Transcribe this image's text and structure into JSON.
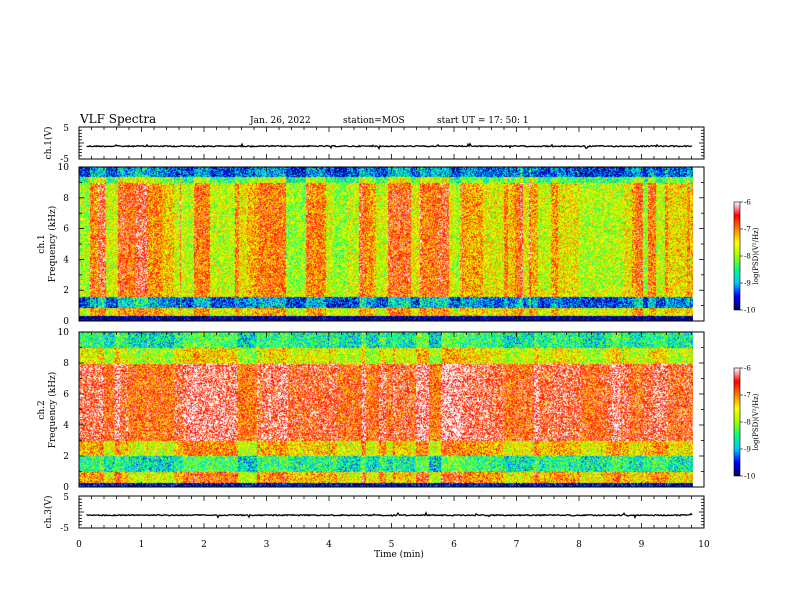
{
  "header": {
    "title": "VLF Spectra",
    "date": "Jan. 26, 2022",
    "station": "station=MOS",
    "start": "start  UT =   17: 50: 1"
  },
  "chart_data": [
    {
      "type": "line",
      "name": "ch1-waveform",
      "ylabel": "ch.1(V)",
      "ylim": [
        -5,
        5
      ],
      "yticks": [
        "5",
        "-5"
      ],
      "baseline": -1.0
    },
    {
      "type": "heatmap",
      "name": "ch1-spectrogram",
      "ylabel": "ch.1\nFrequency (kHz)",
      "ylim": [
        0,
        10
      ],
      "yticks": [
        "0",
        "2",
        "4",
        "6",
        "8",
        "10"
      ],
      "colorbar": {
        "label": "log(PSD)(V²/Hz)",
        "ticks": [
          "-6",
          "-7",
          "-8",
          "-9",
          "-10"
        ],
        "range": [
          -10,
          -6
        ]
      }
    },
    {
      "type": "heatmap",
      "name": "ch2-spectrogram",
      "ylabel": "ch.2\nFrequency (kHz)",
      "ylim": [
        0,
        10
      ],
      "yticks": [
        "0",
        "2",
        "4",
        "6",
        "8",
        "10"
      ],
      "colorbar": {
        "label": "log(PSD)(V²/Hz)",
        "ticks": [
          "-6",
          "-7",
          "-8",
          "-9",
          "-10"
        ],
        "range": [
          -10,
          -6
        ]
      }
    },
    {
      "type": "line",
      "name": "ch3-waveform",
      "ylabel": "ch.3(V)",
      "ylim": [
        -5,
        5
      ],
      "yticks": [
        "5",
        "-5"
      ],
      "baseline": -1.0
    }
  ],
  "xaxis": {
    "label": "Time  (min)",
    "ticks": [
      "0",
      "1",
      "2",
      "3",
      "4",
      "5",
      "6",
      "7",
      "8",
      "9",
      "10"
    ],
    "xlim": [
      0,
      10
    ],
    "data_end": 9.82
  },
  "colors": {
    "colormap": [
      "#000060",
      "#0000ff",
      "#00c8ff",
      "#00ff80",
      "#a0ff00",
      "#ffff00",
      "#ff8000",
      "#ff0000",
      "#ffffff"
    ]
  }
}
